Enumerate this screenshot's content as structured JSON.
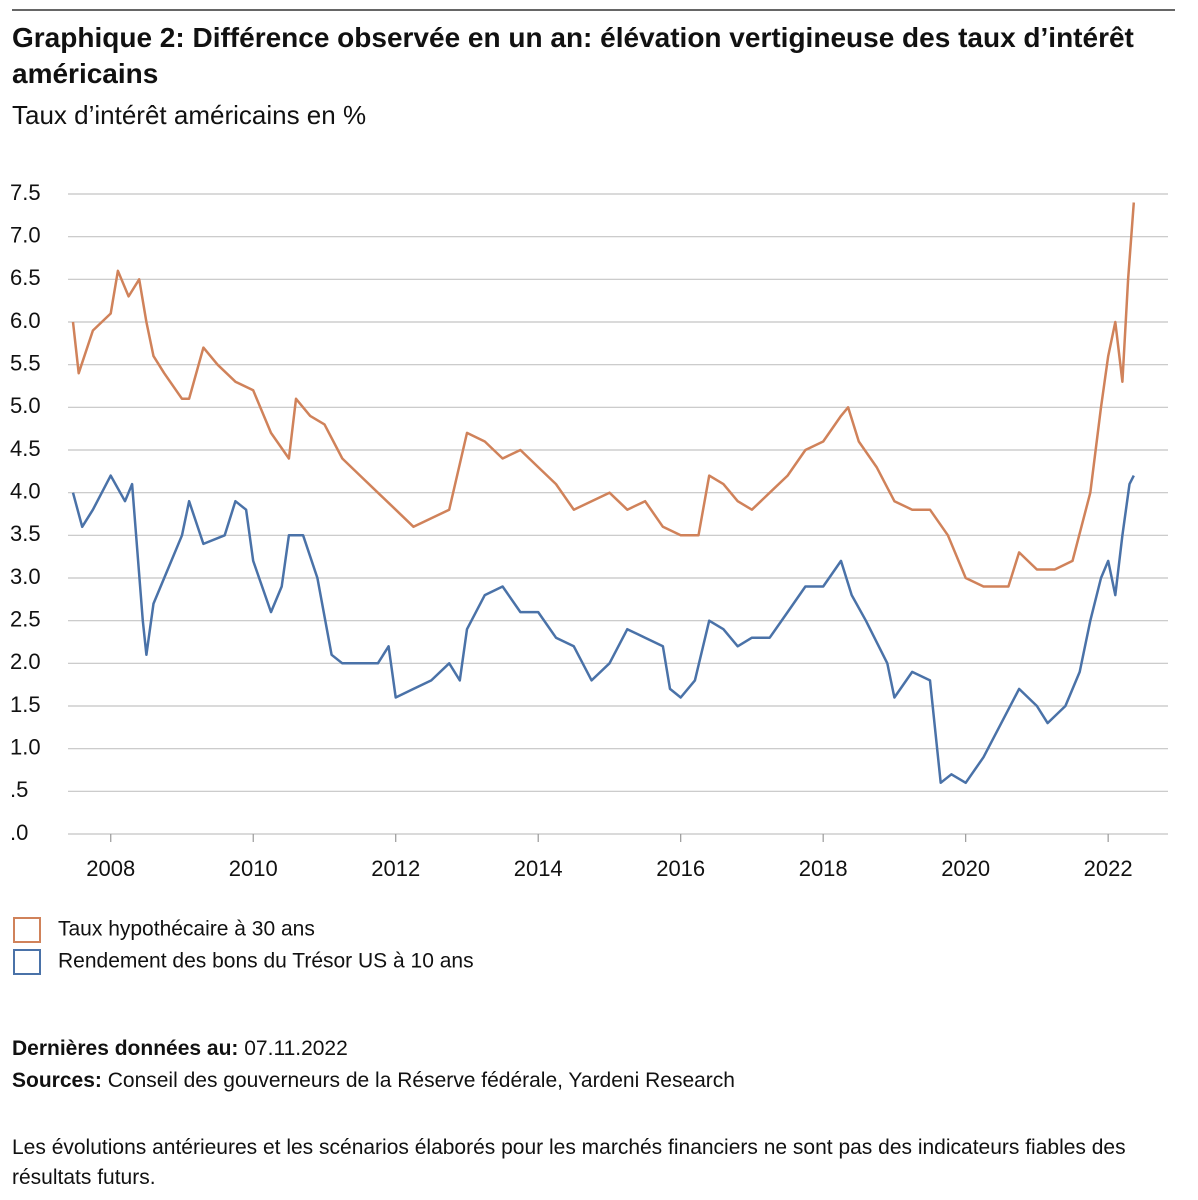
{
  "chart_data": {
    "type": "line",
    "title": "Graphique 2: Différence observée en un an: élévation vertigineuse des taux d’intérêt américains",
    "subtitle": "Taux d’intérêt américains en %",
    "xlim": [
      2007.4,
      2022.84
    ],
    "xticks": [
      2008,
      2010,
      2012,
      2014,
      2016,
      2018,
      2020,
      2022
    ],
    "ylim": [
      0,
      7.5
    ],
    "yticks": [
      {
        "value": 0,
        "label": ".0"
      },
      {
        "value": 0.5,
        "label": ".5"
      },
      {
        "value": 1,
        "label": "1.0"
      },
      1.5,
      {
        "value": 2,
        "label": "2.0"
      },
      2.5,
      {
        "value": 3,
        "label": "3.0"
      },
      3.5,
      {
        "value": 4,
        "label": "4.0"
      },
      4.5,
      {
        "value": 5,
        "label": "5.0"
      },
      5.5,
      {
        "value": 6,
        "label": "6.0"
      },
      6.5,
      {
        "value": 7,
        "label": "7.0"
      },
      7.5
    ],
    "grid": true,
    "series": [
      {
        "name": "Taux hypothécaire à 30 ans",
        "color": "#d0825a",
        "x": [
          2007.47,
          2007.55,
          2007.75,
          2008.0,
          2008.1,
          2008.25,
          2008.4,
          2008.5,
          2008.6,
          2008.75,
          2009.0,
          2009.1,
          2009.3,
          2009.5,
          2009.75,
          2010.0,
          2010.25,
          2010.5,
          2010.6,
          2010.8,
          2011.0,
          2011.25,
          2011.5,
          2011.75,
          2012.0,
          2012.25,
          2012.5,
          2012.75,
          2013.0,
          2013.25,
          2013.5,
          2013.75,
          2014.0,
          2014.25,
          2014.5,
          2014.75,
          2015.0,
          2015.25,
          2015.5,
          2015.75,
          2016.0,
          2016.25,
          2016.4,
          2016.6,
          2016.8,
          2017.0,
          2017.25,
          2017.5,
          2017.75,
          2018.0,
          2018.25,
          2018.35,
          2018.5,
          2018.75,
          2019.0,
          2019.25,
          2019.5,
          2019.75,
          2020.0,
          2020.25,
          2020.6,
          2020.75,
          2021.0,
          2021.25,
          2021.5,
          2021.75,
          2021.9,
          2022.0,
          2022.1,
          2022.2,
          2022.28,
          2022.36
        ],
        "values": [
          6.0,
          5.4,
          5.9,
          6.1,
          6.6,
          6.3,
          6.5,
          6.0,
          5.6,
          5.4,
          5.1,
          5.1,
          5.7,
          5.5,
          5.3,
          5.2,
          4.7,
          4.4,
          5.1,
          4.9,
          4.8,
          4.4,
          4.2,
          4.0,
          3.8,
          3.6,
          3.7,
          3.8,
          4.7,
          4.6,
          4.4,
          4.5,
          4.3,
          4.1,
          3.8,
          3.9,
          4.0,
          3.8,
          3.9,
          3.6,
          3.5,
          3.5,
          4.2,
          4.1,
          3.9,
          3.8,
          4.0,
          4.2,
          4.5,
          4.6,
          4.9,
          5.0,
          4.6,
          4.3,
          3.9,
          3.8,
          3.8,
          3.5,
          3.0,
          2.9,
          2.9,
          3.3,
          3.1,
          3.1,
          3.2,
          4.0,
          5.0,
          5.6,
          6.0,
          5.3,
          6.5,
          7.4
        ]
      },
      {
        "name": "Rendement des bons du Trésor US à 10 ans",
        "color": "#4a72a8",
        "x": [
          2007.47,
          2007.6,
          2007.75,
          2008.0,
          2008.2,
          2008.3,
          2008.45,
          2008.5,
          2008.6,
          2008.75,
          2009.0,
          2009.1,
          2009.3,
          2009.6,
          2009.75,
          2009.9,
          2010.0,
          2010.25,
          2010.4,
          2010.5,
          2010.7,
          2010.9,
          2011.1,
          2011.25,
          2011.5,
          2011.75,
          2011.9,
          2012.0,
          2012.25,
          2012.5,
          2012.75,
          2012.9,
          2013.0,
          2013.25,
          2013.5,
          2013.75,
          2014.0,
          2014.25,
          2014.5,
          2014.75,
          2015.0,
          2015.25,
          2015.5,
          2015.75,
          2015.85,
          2016.0,
          2016.2,
          2016.4,
          2016.6,
          2016.8,
          2017.0,
          2017.25,
          2017.5,
          2017.75,
          2018.0,
          2018.25,
          2018.4,
          2018.6,
          2018.9,
          2019.0,
          2019.25,
          2019.5,
          2019.65,
          2019.8,
          2020.0,
          2020.25,
          2020.5,
          2020.75,
          2021.0,
          2021.15,
          2021.4,
          2021.6,
          2021.75,
          2021.9,
          2022.0,
          2022.1,
          2022.2,
          2022.3,
          2022.36
        ],
        "values": [
          4.0,
          3.6,
          3.8,
          4.2,
          3.9,
          4.1,
          2.5,
          2.1,
          2.7,
          3.0,
          3.5,
          3.9,
          3.4,
          3.5,
          3.9,
          3.8,
          3.2,
          2.6,
          2.9,
          3.5,
          3.5,
          3.0,
          2.1,
          2.0,
          2.0,
          2.0,
          2.2,
          1.6,
          1.7,
          1.8,
          2.0,
          1.8,
          2.4,
          2.8,
          2.9,
          2.6,
          2.6,
          2.3,
          2.2,
          1.8,
          2.0,
          2.4,
          2.3,
          2.2,
          1.7,
          1.6,
          1.8,
          2.5,
          2.4,
          2.2,
          2.3,
          2.3,
          2.6,
          2.9,
          2.9,
          3.2,
          2.8,
          2.5,
          2.0,
          1.6,
          1.9,
          1.8,
          0.6,
          0.7,
          0.6,
          0.9,
          1.3,
          1.7,
          1.5,
          1.3,
          1.5,
          1.9,
          2.5,
          3.0,
          3.2,
          2.8,
          3.5,
          4.1,
          4.2
        ]
      }
    ]
  },
  "notes": {
    "date_label": "Dernières données au:",
    "date": "07.11.2022",
    "sources_label": "Sources:",
    "sources": "Conseil des gouverneurs de la Réserve fédérale, Yardeni Research",
    "disclaimer": "Les évolutions antérieures et les scénarios élaborés pour les marchés financiers ne sont pas des indicateurs fiables des résultats futurs."
  }
}
